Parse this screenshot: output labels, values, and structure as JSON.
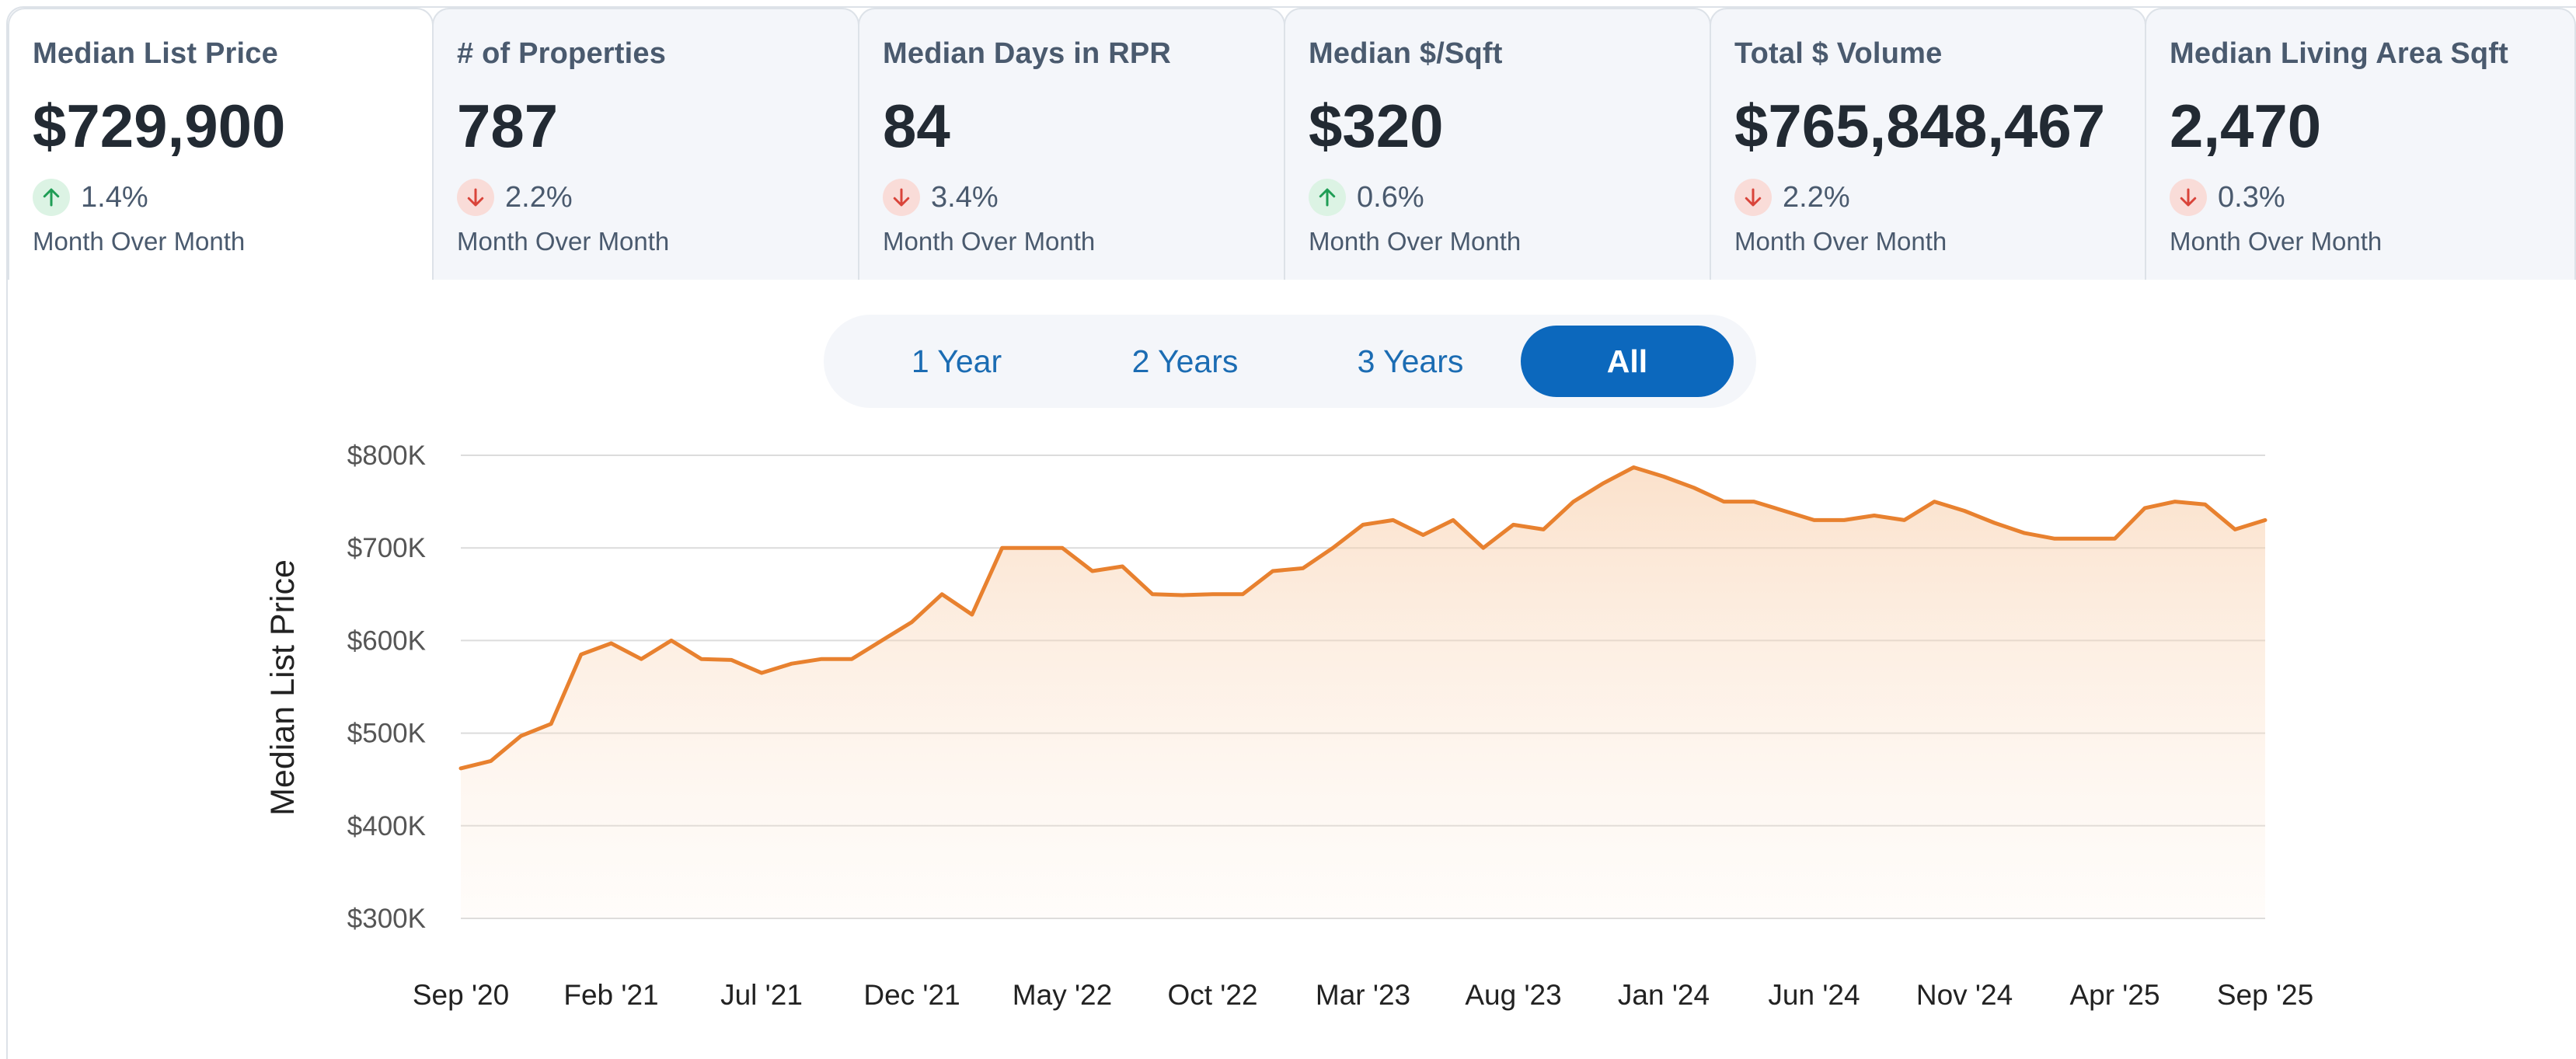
{
  "tabs": [
    {
      "title": "Median List Price",
      "value": "$729,900",
      "direction": "up",
      "change": "1.4%",
      "caption": "Month Over Month"
    },
    {
      "title": "# of Properties",
      "value": "787",
      "direction": "down",
      "change": "2.2%",
      "caption": "Month Over Month"
    },
    {
      "title": "Median Days in RPR",
      "value": "84",
      "direction": "down",
      "change": "3.4%",
      "caption": "Month Over Month"
    },
    {
      "title": "Median $/Sqft",
      "value": "$320",
      "direction": "up",
      "change": "0.6%",
      "caption": "Month Over Month"
    },
    {
      "title": "Total $ Volume",
      "value": "$765,848,467",
      "direction": "down",
      "change": "2.2%",
      "caption": "Month Over Month"
    },
    {
      "title": "Median Living Area Sqft",
      "value": "2,470",
      "direction": "down",
      "change": "0.3%",
      "caption": "Month Over Month"
    }
  ],
  "active_tab": "Median List Price",
  "range_options": [
    "1 Year",
    "2 Years",
    "3 Years",
    "All"
  ],
  "active_range": "All",
  "colors": {
    "line": "#e8812f",
    "active_button": "#0c68bd",
    "up": "#1f9d55",
    "down": "#d9443a"
  },
  "chart_data": {
    "type": "area",
    "ylabel": "Median List Price",
    "ylim": [
      300000,
      800000
    ],
    "yticks": [
      "$300K",
      "$400K",
      "$500K",
      "$600K",
      "$700K",
      "$800K"
    ],
    "xticks": [
      "Sep '20",
      "Feb '21",
      "Jul '21",
      "Dec '21",
      "May '22",
      "Oct '22",
      "Mar '23",
      "Aug '23",
      "Jan '24",
      "Jun '24",
      "Nov '24",
      "Apr '25",
      "Sep '25"
    ],
    "grid": true,
    "series": [
      {
        "name": "Median List Price",
        "x": [
          "2020-09",
          "2020-10",
          "2020-11",
          "2020-12",
          "2021-01",
          "2021-02",
          "2021-03",
          "2021-04",
          "2021-05",
          "2021-06",
          "2021-07",
          "2021-08",
          "2021-09",
          "2021-10",
          "2021-11",
          "2021-12",
          "2022-01",
          "2022-02",
          "2022-03",
          "2022-04",
          "2022-05",
          "2022-06",
          "2022-07",
          "2022-08",
          "2022-09",
          "2022-10",
          "2022-11",
          "2022-12",
          "2023-01",
          "2023-02",
          "2023-03",
          "2023-04",
          "2023-05",
          "2023-06",
          "2023-07",
          "2023-08",
          "2023-09",
          "2023-10",
          "2023-11",
          "2023-12",
          "2024-01",
          "2024-02",
          "2024-03",
          "2024-04",
          "2024-05",
          "2024-06",
          "2024-07",
          "2024-08",
          "2024-09",
          "2024-10",
          "2024-11",
          "2024-12",
          "2025-01",
          "2025-02",
          "2025-03",
          "2025-04",
          "2025-05",
          "2025-06",
          "2025-07",
          "2025-08",
          "2025-09"
        ],
        "values": [
          462000,
          470000,
          497000,
          510000,
          585000,
          597000,
          580000,
          600000,
          580000,
          579000,
          565000,
          575000,
          580000,
          580000,
          600000,
          620000,
          650000,
          628000,
          700000,
          700000,
          700000,
          675000,
          680000,
          650000,
          649000,
          650000,
          650000,
          675000,
          678000,
          700000,
          725000,
          730000,
          714000,
          730000,
          700000,
          725000,
          720000,
          750000,
          770000,
          787000,
          777000,
          765000,
          750000,
          750000,
          740000,
          730000,
          730000,
          735000,
          730000,
          750000,
          740000,
          727000,
          716000,
          710000,
          710000,
          710000,
          743000,
          750000,
          747000,
          720000,
          730000
        ]
      }
    ]
  }
}
